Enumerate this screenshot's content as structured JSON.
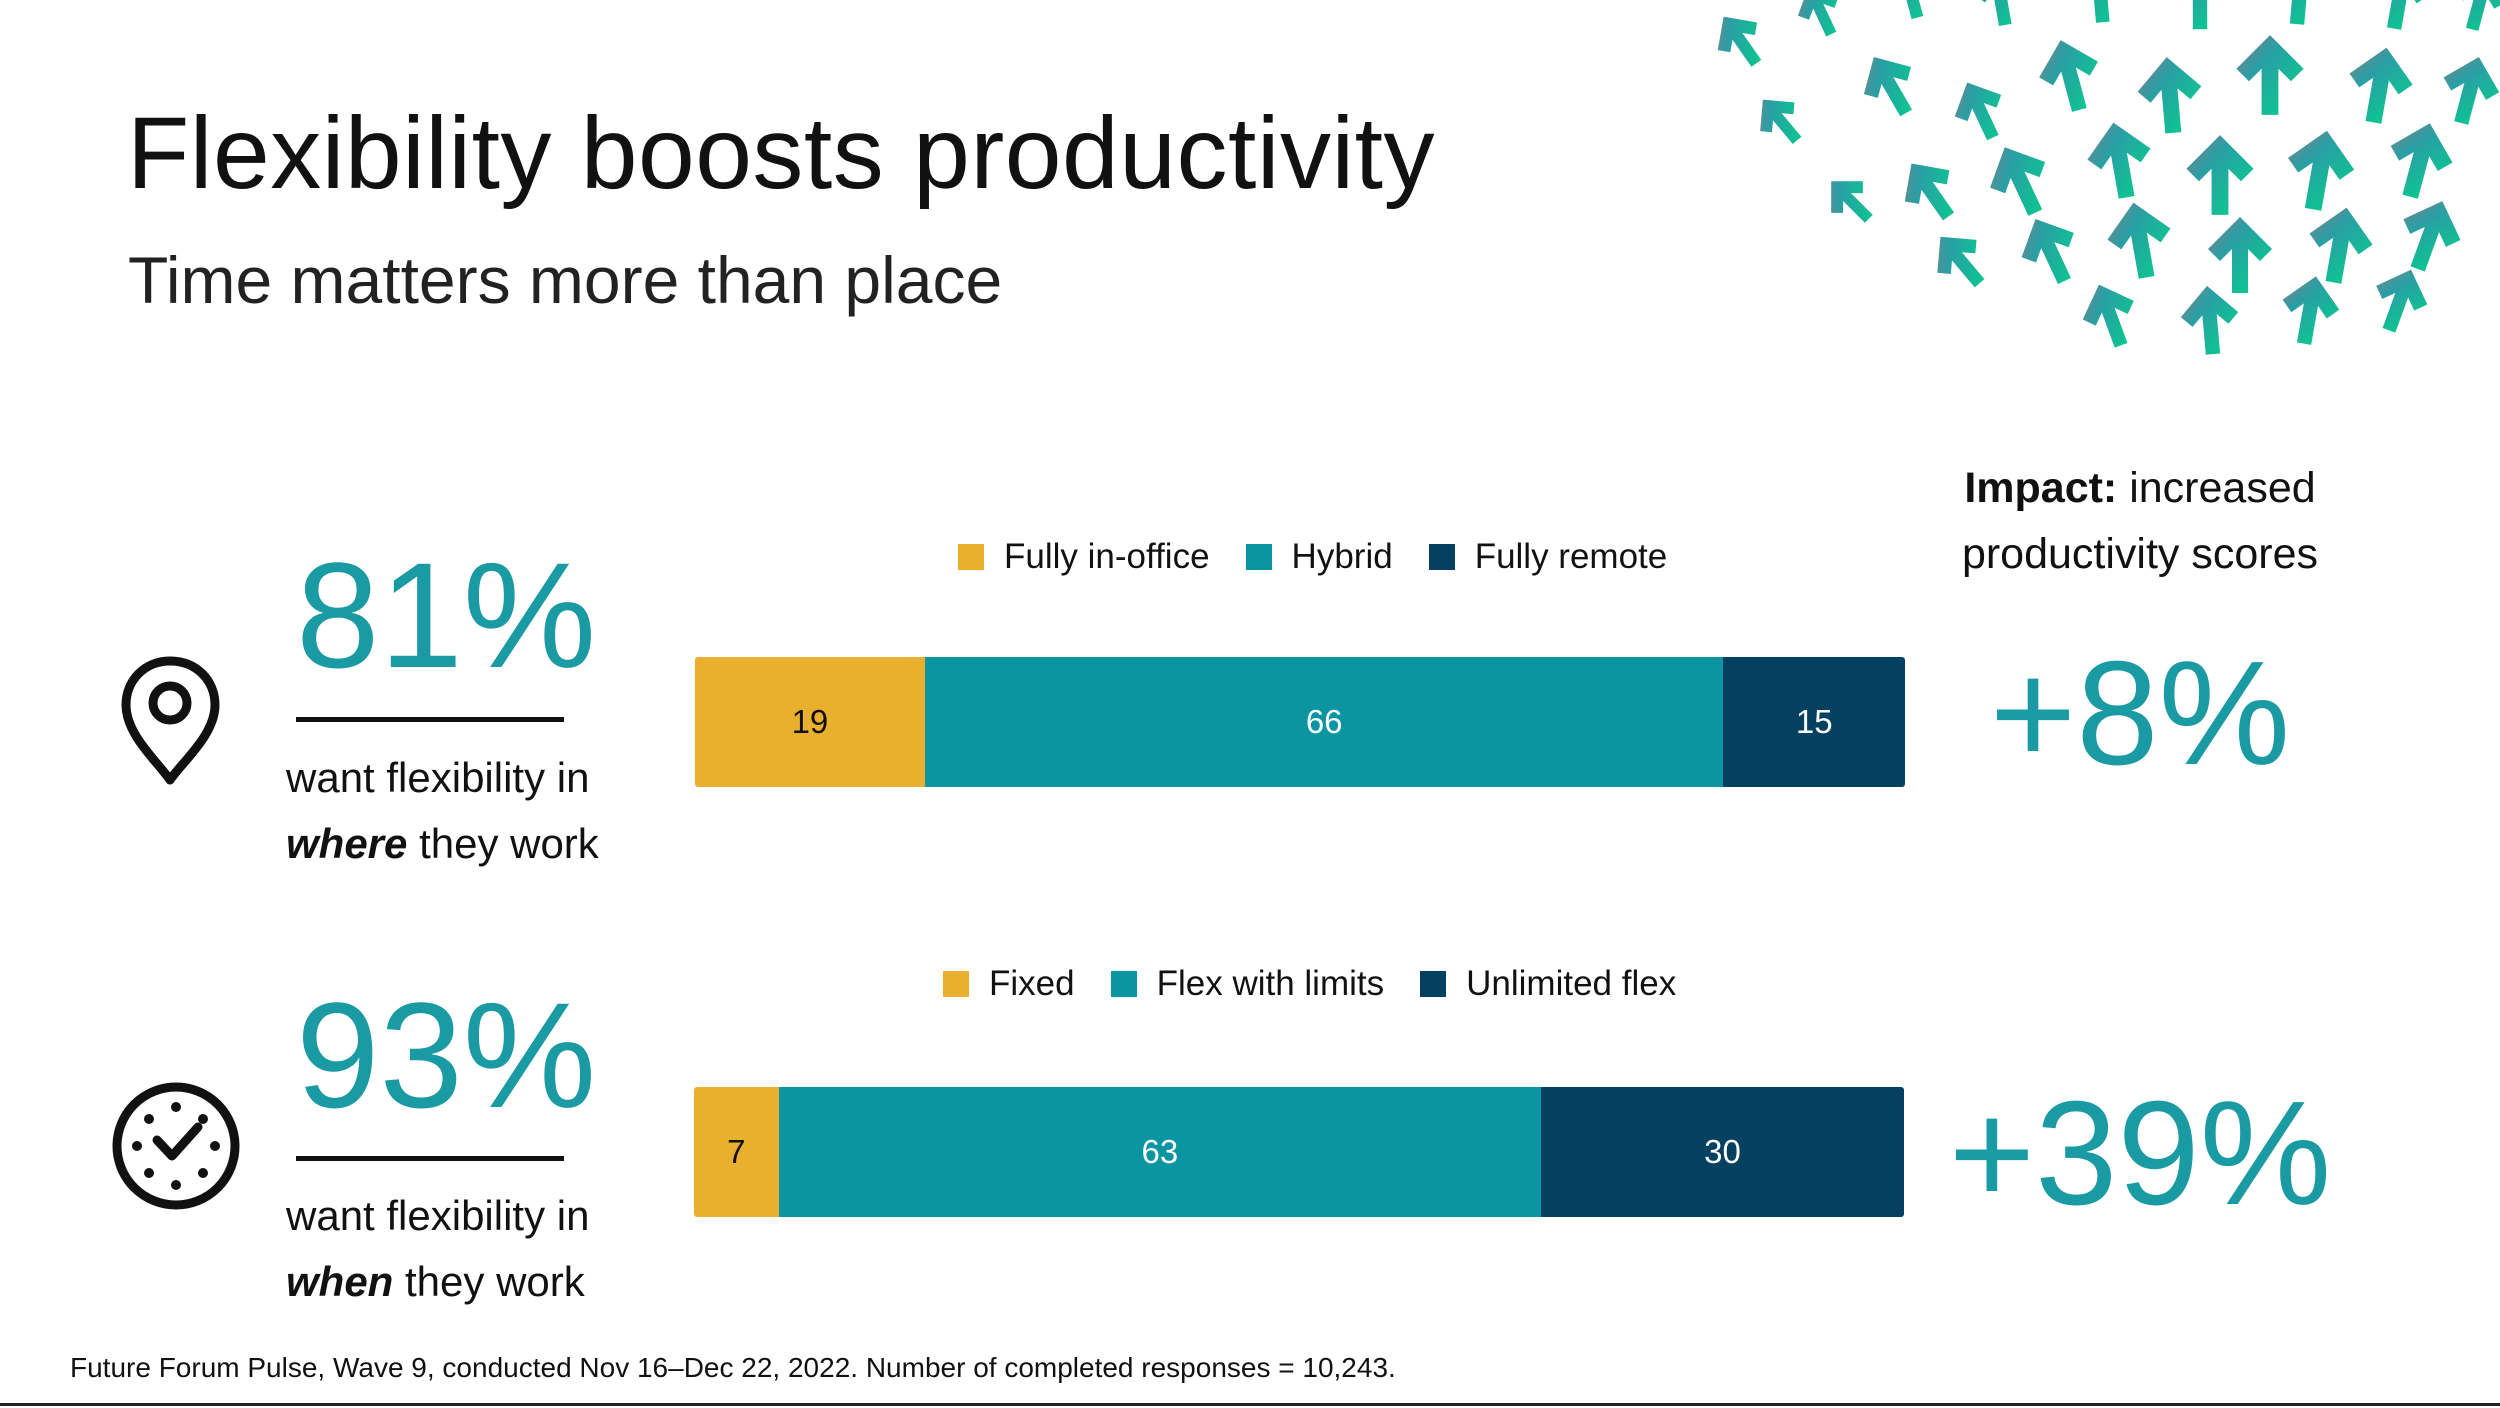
{
  "title": "Flexibility boosts productivity",
  "subtitle": "Time matters more than place",
  "icons": [
    "location-pin-icon",
    "clock-icon",
    "up-arrows-pattern"
  ],
  "colors": {
    "fixed": "#e9b030",
    "middle": "#0b95a3",
    "unlimited": "#04405f",
    "accent": "#1a9aa2"
  },
  "impact": {
    "title_bold": "Impact:",
    "title_rest": "increased productivity scores"
  },
  "rows": [
    {
      "pct": "81%",
      "desc_line1": "want flexibility in",
      "desc_emph": "where",
      "desc_rest": "they work",
      "impact_value": "+8%"
    },
    {
      "pct": "93%",
      "desc_line1": "want flexibility in",
      "desc_emph": "when",
      "desc_rest": "they work",
      "impact_value": "+39%"
    }
  ],
  "footnote": "Future Forum Pulse, Wave 9, conducted Nov 16–Dec 22, 2022. Number of completed responses = 10,243.",
  "chart_data": [
    {
      "type": "bar",
      "orientation": "horizontal",
      "stacked": true,
      "categories": [
        "where they work"
      ],
      "series": [
        {
          "name": "Fully in-office",
          "values": [
            19
          ],
          "color": "#e9b030"
        },
        {
          "name": "Hybrid",
          "values": [
            66
          ],
          "color": "#0b95a3"
        },
        {
          "name": "Fully remote",
          "values": [
            15
          ],
          "color": "#04405f"
        }
      ],
      "xlim": [
        0,
        100
      ],
      "legend": "top",
      "grid": false
    },
    {
      "type": "bar",
      "orientation": "horizontal",
      "stacked": true,
      "categories": [
        "when they work"
      ],
      "series": [
        {
          "name": "Fixed",
          "values": [
            7
          ],
          "color": "#e9b030"
        },
        {
          "name": "Flex with limits",
          "values": [
            63
          ],
          "color": "#0b95a3"
        },
        {
          "name": "Unlimited flex",
          "values": [
            30
          ],
          "color": "#04405f"
        }
      ],
      "xlim": [
        0,
        100
      ],
      "legend": "top",
      "grid": false
    }
  ]
}
